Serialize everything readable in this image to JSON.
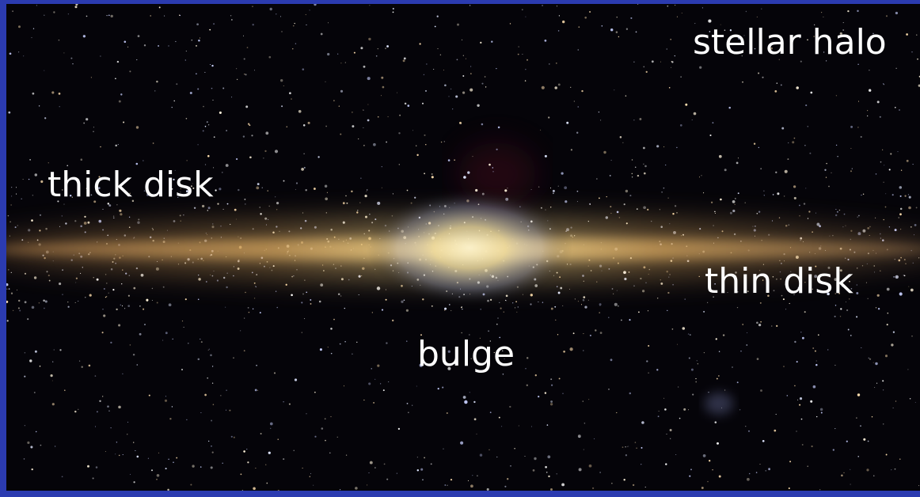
{
  "labels": [
    "stellar halo",
    "thick disk",
    "thin disk",
    "bulge"
  ]
}
